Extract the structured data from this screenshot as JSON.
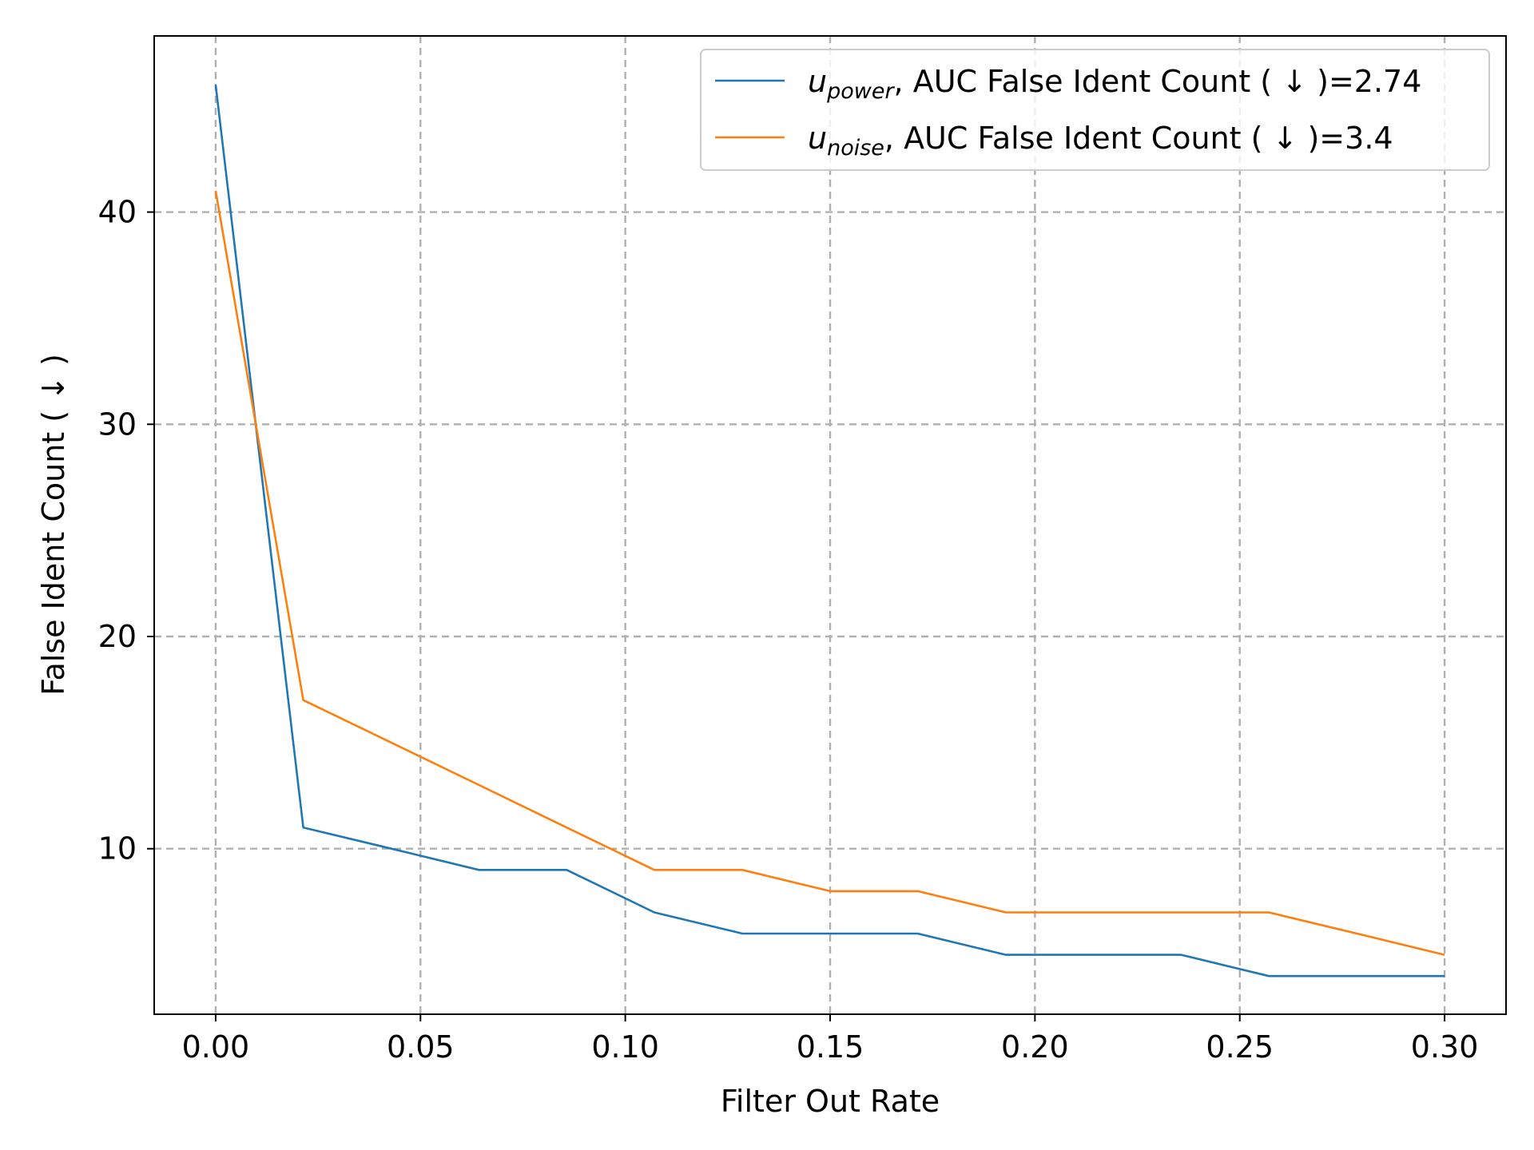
{
  "chart_data": {
    "type": "line",
    "xlabel": "Filter Out Rate",
    "ylabel": "False Ident Count ( ↓ )",
    "xlim": [
      -0.015,
      0.315
    ],
    "ylim": [
      2.2,
      48.3
    ],
    "xticks": [
      0.0,
      0.05,
      0.1,
      0.15,
      0.2,
      0.25,
      0.3
    ],
    "xtick_labels": [
      "0.00",
      "0.05",
      "0.10",
      "0.15",
      "0.20",
      "0.25",
      "0.30"
    ],
    "yticks": [
      10,
      20,
      30,
      40
    ],
    "ytick_labels": [
      "10",
      "20",
      "30",
      "40"
    ],
    "grid": true,
    "legend_position": "top-right",
    "series": [
      {
        "name": "u_power, AUC False Ident Count ( ↓ )=2.74",
        "legend_base": "u",
        "legend_sub": "power",
        "legend_rest": ", AUC False Ident Count ( ↓ )=2.74",
        "color": "#1f77b4",
        "x": [
          0.0,
          0.0214,
          0.0429,
          0.0643,
          0.0857,
          0.1071,
          0.1286,
          0.15,
          0.1714,
          0.1929,
          0.2143,
          0.2357,
          0.2571,
          0.2786,
          0.3
        ],
        "y": [
          46,
          11,
          10,
          9,
          9,
          7,
          6,
          6,
          6,
          5,
          5,
          5,
          4,
          4,
          4
        ]
      },
      {
        "name": "u_noise, AUC False Ident Count ( ↓ )=3.4",
        "legend_base": "u",
        "legend_sub": "noise",
        "legend_rest": ", AUC False Ident Count ( ↓ )=3.4",
        "color": "#ff7f0e",
        "x": [
          0.0,
          0.0214,
          0.0429,
          0.0643,
          0.0857,
          0.1071,
          0.1286,
          0.15,
          0.1714,
          0.1929,
          0.2143,
          0.2357,
          0.2571,
          0.2786,
          0.3
        ],
        "y": [
          41,
          17,
          15,
          13,
          11,
          9,
          9,
          8,
          8,
          7,
          7,
          7,
          7,
          6,
          5
        ]
      }
    ]
  }
}
